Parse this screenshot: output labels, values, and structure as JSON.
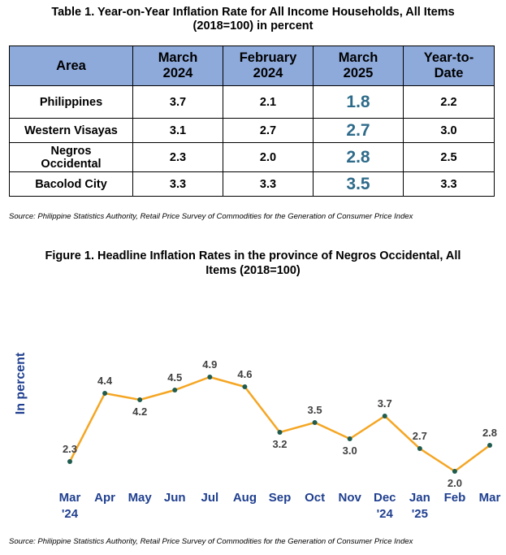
{
  "table": {
    "title_line1": "Table 1. Year-on-Year Inflation Rate for All Income Households, All Items",
    "title_line2": "(2018=100) in percent",
    "headers": [
      {
        "line1": "Area",
        "line2": ""
      },
      {
        "line1": "March",
        "line2": "2024"
      },
      {
        "line1": "February",
        "line2": "2024"
      },
      {
        "line1": "March",
        "line2": "2025"
      },
      {
        "line1": "Year-to-",
        "line2": "Date"
      }
    ],
    "rows": [
      {
        "area_line1": "Philippines",
        "area_line2": "",
        "mar2024": "3.7",
        "feb2024": "2.1",
        "mar2025": "1.8",
        "ytd": "2.2"
      },
      {
        "area_line1": "Western Visayas",
        "area_line2": "",
        "mar2024": "3.1",
        "feb2024": "2.7",
        "mar2025": "2.7",
        "ytd": "3.0"
      },
      {
        "area_line1": "Negros",
        "area_line2": "Occidental",
        "mar2024": "2.3",
        "feb2024": "2.0",
        "mar2025": "2.8",
        "ytd": "2.5"
      },
      {
        "area_line1": "Bacolod City",
        "area_line2": "",
        "mar2024": "3.3",
        "feb2024": "3.3",
        "mar2025": "3.5",
        "ytd": "3.3"
      }
    ],
    "header_color": "#8eaadb",
    "highlight_color": "#2e6b8a"
  },
  "source_text": "Source: Philippine Statistics Authority, Retail Price Survey of Commodities for the Generation of Consumer Price Index",
  "figure": {
    "title_line1": "Figure 1. Headline Inflation Rates in the province of Negros Occidental, All",
    "title_line2": "Items (2018=100)"
  },
  "chart_data": {
    "type": "line",
    "ylabel": "In percent",
    "categories": [
      "Mar '24",
      "Apr",
      "May",
      "Jun",
      "Jul",
      "Aug",
      "Sep",
      "Oct",
      "Nov",
      "Dec '24",
      "Jan '25",
      "Feb",
      "Mar"
    ],
    "category_lines": [
      [
        "Mar",
        "'24"
      ],
      [
        "Apr"
      ],
      [
        "May"
      ],
      [
        "Jun"
      ],
      [
        "Jul"
      ],
      [
        "Aug"
      ],
      [
        "Sep"
      ],
      [
        "Oct"
      ],
      [
        "Nov"
      ],
      [
        "Dec",
        "'24"
      ],
      [
        "Jan",
        "'25"
      ],
      [
        "Feb"
      ],
      [
        "Mar"
      ]
    ],
    "series": [
      {
        "values": [
          2.3,
          4.4,
          4.2,
          4.5,
          4.9,
          4.6,
          3.2,
          3.5,
          3.0,
          3.7,
          2.7,
          2.0,
          2.8
        ],
        "labels": [
          "2.3",
          "4.4",
          "4.2",
          "4.5",
          "4.9",
          "4.6",
          "3.2",
          "3.5",
          "3.0",
          "3.7",
          "2.7",
          "2.0",
          "2.8"
        ]
      }
    ],
    "ylim": [
      1,
      6
    ],
    "grid": false,
    "legend": "none",
    "line_color": "#f5a623",
    "marker_color": "#1f5c4f",
    "axis_label_color": "#1f3f8f"
  }
}
